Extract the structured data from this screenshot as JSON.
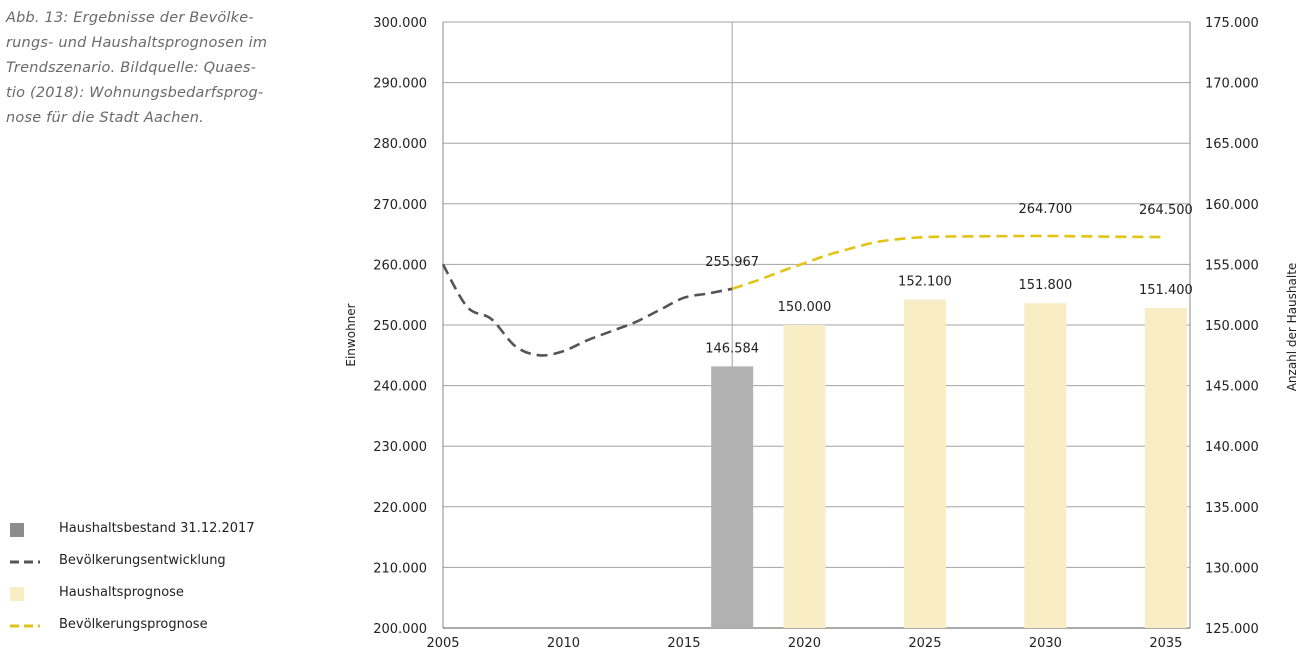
{
  "caption_lines": [
    "Abb. 13: Ergebnisse der Bevölke-",
    "rungs- und Haushaltsprognosen im",
    "Trendszenario. Bildquelle: Quaes-",
    "tio (2018): Wohnungsbedarfsprog-",
    "nose für die Stadt Aachen."
  ],
  "legend": [
    {
      "label": "Haushaltsbestand 31.12.2017",
      "symbol": "square-icon",
      "color": "#8c8c8c"
    },
    {
      "label": "Bevölkerungsentwicklung",
      "symbol": "dashed-line-icon",
      "color": "#555555"
    },
    {
      "label": "Haushaltsprognose",
      "symbol": "square-icon",
      "color": "#f8edc4"
    },
    {
      "label": "Bevölkerungsprognose",
      "symbol": "dashed-line-icon",
      "color": "#e2c418"
    }
  ],
  "chart_data": {
    "type": "bar",
    "xlabel": "",
    "ylabel": "Einwohner",
    "y2label": "Anzahl der Haushalte",
    "xlim": [
      2005,
      2036
    ],
    "x_ticks": [
      "2005",
      "2010",
      "2015",
      "2020",
      "2025",
      "2030",
      "2035"
    ],
    "ylim": [
      200000,
      300000
    ],
    "y_ticks": [
      "200.000",
      "210.000",
      "220.000",
      "230.000",
      "240.000",
      "250.000",
      "260.000",
      "270.000",
      "280.000",
      "290.000",
      "300.000"
    ],
    "y2lim": [
      125000,
      175000
    ],
    "y2_ticks": [
      "125.000",
      "130.000",
      "135.000",
      "140.000",
      "145.000",
      "150.000",
      "155.000",
      "160.000",
      "165.000",
      "170.000",
      "175.000"
    ],
    "grid": true,
    "legend_position": "bottom-left",
    "marker_line_x": 2017,
    "bars": [
      {
        "x": 2017,
        "value": 146584,
        "label": "146.584",
        "color": "#b1b1b1",
        "axis": "right"
      },
      {
        "x": 2020,
        "value": 150000,
        "label": "150.000",
        "color": "#f8edc4",
        "axis": "right"
      },
      {
        "x": 2025,
        "value": 152100,
        "label": "152.100",
        "color": "#f8edc4",
        "axis": "right"
      },
      {
        "x": 2030,
        "value": 151800,
        "label": "151.800",
        "color": "#f8edc4",
        "axis": "right"
      },
      {
        "x": 2035,
        "value": 151400,
        "label": "151.400",
        "color": "#f8edc4",
        "axis": "right"
      }
    ],
    "series": [
      {
        "name": "Bevölkerungsentwicklung",
        "color": "#555555",
        "style": "dashed",
        "axis": "left",
        "x": [
          2005,
          2006,
          2007,
          2008,
          2009,
          2010,
          2011,
          2012,
          2013,
          2014,
          2015,
          2016,
          2017
        ],
        "y": [
          260000,
          253000,
          251000,
          246500,
          245000,
          245700,
          247500,
          249000,
          250500,
          252500,
          254500,
          255200,
          255967
        ]
      },
      {
        "name": "Bevölkerungsprognose",
        "color": "#e2c418",
        "style": "dashed",
        "axis": "left",
        "x": [
          2017,
          2018,
          2019,
          2020,
          2021,
          2022,
          2023,
          2024,
          2025,
          2026,
          2028,
          2030,
          2032,
          2035
        ],
        "y": [
          255967,
          257300,
          258800,
          260200,
          261600,
          262700,
          263700,
          264200,
          264500,
          264600,
          264650,
          264700,
          264600,
          264500
        ]
      }
    ],
    "point_labels": [
      {
        "x": 2017,
        "y": 255967,
        "label": "255.967"
      },
      {
        "x": 2030,
        "y": 264700,
        "label": "264.700"
      },
      {
        "x": 2035,
        "y": 264500,
        "label": "264.500"
      }
    ]
  }
}
